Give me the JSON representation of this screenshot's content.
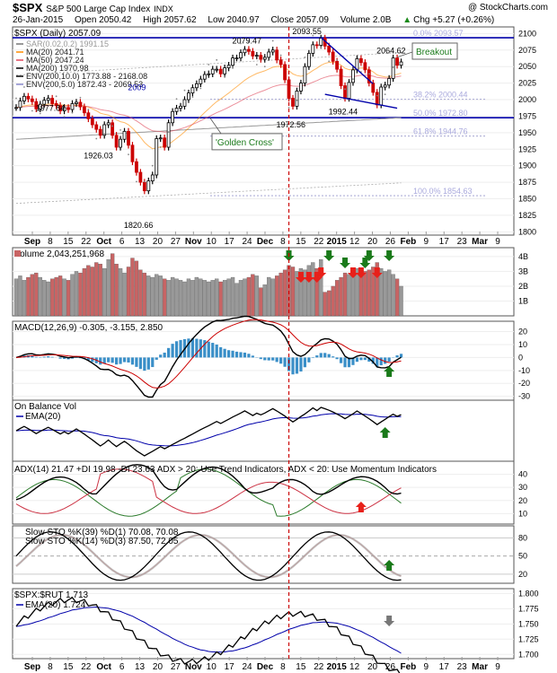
{
  "header": {
    "symbol": "$SPX",
    "name": "S&P 500 Large Cap Index",
    "exchange": "INDX",
    "watermark": "@ StockCharts.com",
    "date": "26-Jan-2015",
    "open": "Open 2050.42",
    "high": "High 2057.62",
    "low": "Low 2040.97",
    "close": "Close 2057.09",
    "volume": "Volume 2.0B",
    "chg": "Chg +5.27 (+0.26%)",
    "chg_arrow": "▲"
  },
  "colors": {
    "up": "#000000",
    "down": "#cc0000",
    "ma20": "#ff8c00",
    "ma50": "#e0475a",
    "ma200": "#000000",
    "blue_line": "#0000aa",
    "event_line": "#cc0000",
    "vol_up": "#999999",
    "vol_down": "#c86464",
    "macd_hist": "#3a8fc8",
    "green": "#1a7a1a",
    "red": "#e8201a"
  },
  "chart_data": [
    {
      "panel": "price",
      "type": "ohlc",
      "title": "$SPX (Daily) 2057.09",
      "y_ticks": [
        "2100",
        "2075",
        "2050",
        "2025",
        "2000",
        "1975",
        "1950",
        "1925",
        "1900",
        "1875",
        "1850",
        "1825",
        "1800"
      ],
      "ylim": [
        1795,
        2110
      ],
      "legend": [
        {
          "label": "SAR(0.02,0.2) 1991.15",
          "color": "#777777"
        },
        {
          "label": "MA(20) 2041.71",
          "color": "#ff8c00"
        },
        {
          "label": "MA(50) 2047.24",
          "color": "#e0475a"
        },
        {
          "label": "MA(200) 1970.98",
          "color": "#000000"
        },
        {
          "label": "ENV(200,10.0) 1773.88 - 2168.08",
          "color": "#000000"
        },
        {
          "label": "ENV(200,5.0) 1872.43 - 2069.53",
          "color": "#8888cc"
        }
      ],
      "fib_levels": [
        {
          "label": "0.0% 2093.57",
          "value": 2093.57
        },
        {
          "label": "38.2% 2000.44",
          "value": 2000.44
        },
        {
          "label": "50.0% 1972.80",
          "value": 1972.8
        },
        {
          "label": "61.8% 1944.76",
          "value": 1944.76
        },
        {
          "label": "100.0% 1854.63",
          "value": 1854.63
        }
      ],
      "horizontal_lines": [
        2093.57,
        1972.56
      ],
      "price_labels": [
        {
          "text": "1977.84",
          "value": 1977.84
        },
        {
          "text": "1926.03",
          "value": 1926.03
        },
        {
          "text": "1820.66",
          "value": 1820.66
        },
        {
          "text": "2079.47",
          "value": 2079.47
        },
        {
          "text": "1972.56",
          "value": 1972.56
        },
        {
          "text": "2093.55",
          "value": 2093.55
        },
        {
          "text": "1992.44",
          "value": 1992.44
        },
        {
          "text": "2064.62",
          "value": 2064.62
        },
        {
          "text": "2009",
          "value": 2009
        }
      ],
      "annotations": [
        "Breakout",
        "'Golden Cross'"
      ],
      "close": [
        1988,
        1998,
        2005,
        2001,
        1997,
        1986,
        1993,
        1999,
        2002,
        1994,
        1991,
        1983,
        1988,
        1985,
        1994,
        1996,
        1989,
        1980,
        1971,
        1962,
        1955,
        1946,
        1962,
        1965,
        1946,
        1928,
        1940,
        1952,
        1931,
        1906,
        1890,
        1875,
        1862,
        1877,
        1886,
        1941,
        1942,
        1928,
        1965,
        1982,
        1987,
        1990,
        2000,
        2010,
        2018,
        2024,
        2031,
        2038,
        2039,
        2046,
        2046,
        2039,
        2048,
        2052,
        2063,
        2063,
        2071,
        2076,
        2073,
        2066,
        2067,
        2061,
        2064,
        2072,
        2075,
        2060,
        2053,
        2030,
        2002,
        1990,
        2013,
        2025,
        2050,
        2070,
        2083,
        2082,
        2093,
        2081,
        2072,
        2058,
        2046,
        2021,
        2002,
        2026,
        2045,
        2062,
        2056,
        2045,
        2025,
        2011,
        1992,
        2019,
        2022,
        2032,
        2063,
        2052,
        2057
      ]
    },
    {
      "panel": "volume",
      "type": "bar",
      "title": "Volume 2,043,251,968",
      "y_ticks": [
        "4B",
        "3B",
        "2B",
        "1B"
      ],
      "ylim": [
        0,
        4.6
      ],
      "values": [
        2.5,
        2.7,
        2.4,
        2.6,
        2.8,
        2.9,
        2.6,
        2.4,
        2.3,
        2.5,
        2.6,
        2.7,
        2.5,
        2.4,
        2.8,
        3.0,
        2.9,
        3.2,
        3.4,
        3.3,
        3.6,
        3.5,
        3.2,
        3.8,
        4.2,
        3.5,
        3.2,
        2.9,
        3.3,
        3.9,
        3.7,
        3.1,
        2.9,
        2.7,
        2.6,
        2.8,
        2.7,
        2.5,
        2.4,
        2.6,
        2.5,
        2.4,
        2.3,
        2.5,
        2.4,
        2.6,
        2.5,
        2.4,
        2.3,
        2.4,
        2.5,
        2.3,
        2.4,
        2.5,
        2.6,
        2.2,
        2.4,
        2.5,
        2.6,
        2.8,
        2.7,
        1.9,
        2.1,
        2.6,
        2.5,
        2.7,
        2.9,
        3.1,
        3.4,
        3.3,
        3.0,
        3.2,
        3.1,
        3.4,
        3.6,
        3.2,
        3.8,
        1.6,
        1.7,
        2.0,
        2.4,
        2.6,
        2.9,
        2.8,
        3.0,
        3.2,
        2.9,
        3.0,
        3.1,
        3.3,
        3.6,
        3.2,
        3.0,
        3.1,
        2.8,
        2.5,
        2.0
      ]
    },
    {
      "panel": "macd",
      "type": "line",
      "title": "MACD(12,26,9) -0.305, -3.155, 2.850",
      "y_ticks": [
        "20",
        "10",
        "0",
        "-10",
        "-20",
        "-30"
      ],
      "ylim": [
        -33,
        28
      ]
    },
    {
      "panel": "obv",
      "type": "line",
      "title": "On Balance Vol",
      "ema_label": "EMA(20)"
    },
    {
      "panel": "adx",
      "type": "line",
      "title": "ADX(14) 21.47 +DI 19.98 -DI 23.63 ADX > 20: Use Trend Indicators, ADX < 20: Use Momentum Indicators",
      "y_ticks": [
        "40",
        "30",
        "20",
        "10"
      ],
      "ylim": [
        2,
        50
      ]
    },
    {
      "panel": "sto",
      "type": "line",
      "title1": "Slow STO %K(39) %D(1) 70.08, 70.08",
      "title2": "Slow STO %K(14) %D(3) 87.50, 72.05",
      "y_ticks": [
        "80",
        "50",
        "20"
      ],
      "ylim": [
        5,
        100
      ]
    },
    {
      "panel": "ratio",
      "type": "line",
      "title": "$SPX:$RUT 1.713",
      "ema_label": "EMA(20) 1.724",
      "y_ticks": [
        "1.800",
        "1.775",
        "1.750",
        "1.725",
        "1.700"
      ],
      "ylim": [
        1.693,
        1.808
      ]
    }
  ],
  "x_axis": {
    "labels": [
      "Sep",
      "8",
      "15",
      "22",
      "Oct",
      "6",
      "13",
      "20",
      "27",
      "Nov",
      "10",
      "17",
      "24",
      "Dec",
      "8",
      "15",
      "22",
      "2015",
      "12",
      "20",
      "26",
      "Feb",
      "9",
      "17",
      "23",
      "Mar",
      "9"
    ]
  }
}
